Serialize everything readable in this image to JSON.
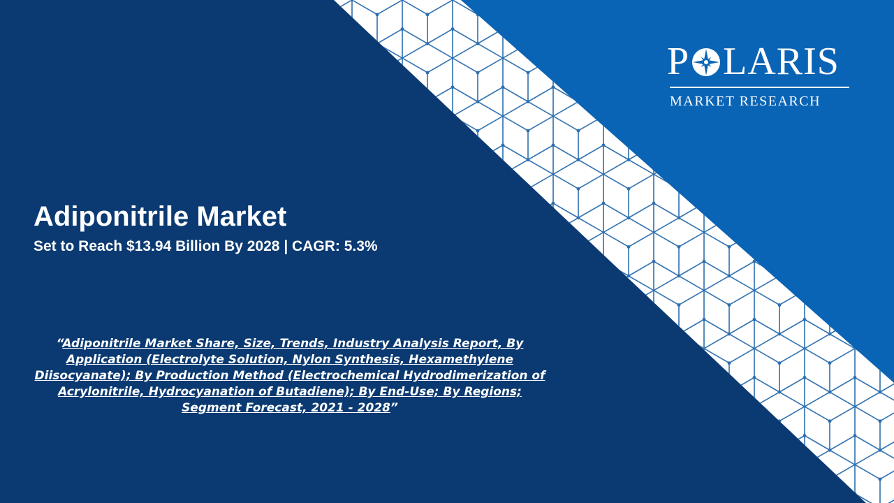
{
  "brand": {
    "name_left": "P",
    "name_right": "LARIS",
    "tagline": "MARKET RESEARCH",
    "logo_icon": "compass-star-icon"
  },
  "headline": {
    "title": "Adiponitrile Market",
    "subtitle": "Set to Reach $13.94 Billion By 2028 | CAGR: 5.3%"
  },
  "report": {
    "open_quote": "“",
    "link_text": "Adiponitrile Market Share, Size, Trends, Industry Analysis Report, By Application (Electrolyte Solution, Nylon Synthesis, Hexamethylene Diisocyanate); By Production Method (Electrochemical Hydrodimerization of Acrylonitrile, Hydrocyanation of Butadiene); By End-Use; By Regions; Segment Forecast, 2021 - 2028",
    "close_quote": "”"
  },
  "colors": {
    "navy": "#0b3a72",
    "band_white": "#ffffff",
    "brand_blue": "#0a64b5",
    "pattern_line": "#2c6eae"
  }
}
